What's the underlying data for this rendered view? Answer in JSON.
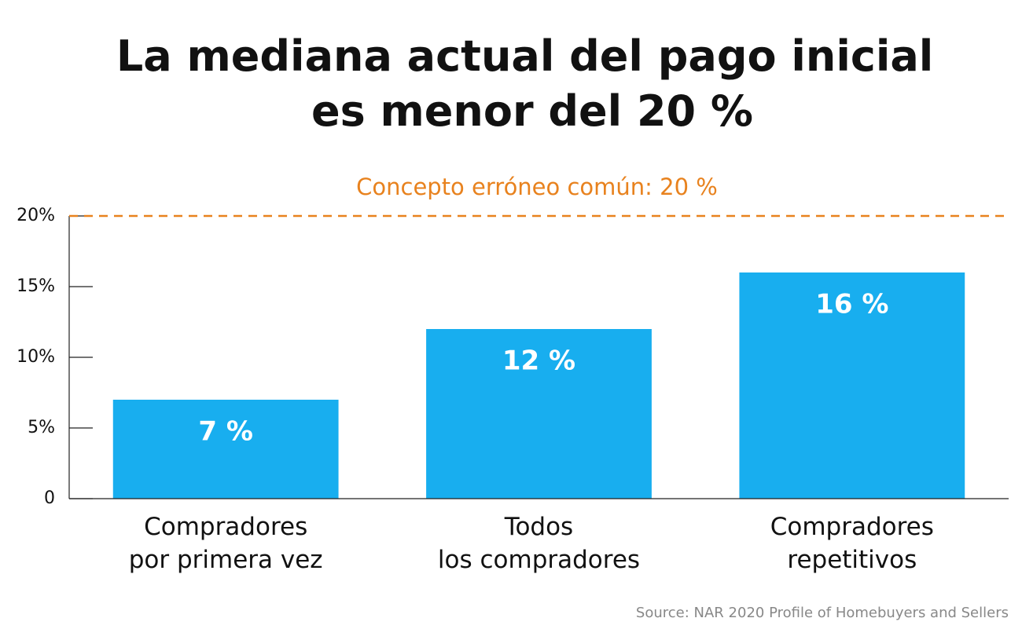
{
  "chart_data": {
    "type": "bar",
    "title": [
      "La mediana actual del pago inicial",
      "es menor del 20 %"
    ],
    "categories": [
      [
        "Compradores",
        "por primera vez"
      ],
      [
        "Todos",
        "los compradores"
      ],
      [
        "Compradores",
        "repetitivos"
      ]
    ],
    "values": [
      7,
      12,
      16
    ],
    "value_labels": [
      "7 %",
      "12 %",
      "16 %"
    ],
    "color": "#18aeef",
    "ylim": [
      0,
      20
    ],
    "yticks": [
      0,
      {
        "value": 5,
        "label": "5%"
      },
      {
        "value": 10,
        "label": "10%"
      },
      {
        "value": 15,
        "label": "15%"
      },
      {
        "value": 20,
        "label": "20%"
      }
    ],
    "reference_line": {
      "value": 20,
      "label": "Concepto erróneo común: 20 %",
      "color": "#e8821e"
    },
    "source": "Source: NAR 2020 Profile of Homebuyers and Sellers"
  }
}
